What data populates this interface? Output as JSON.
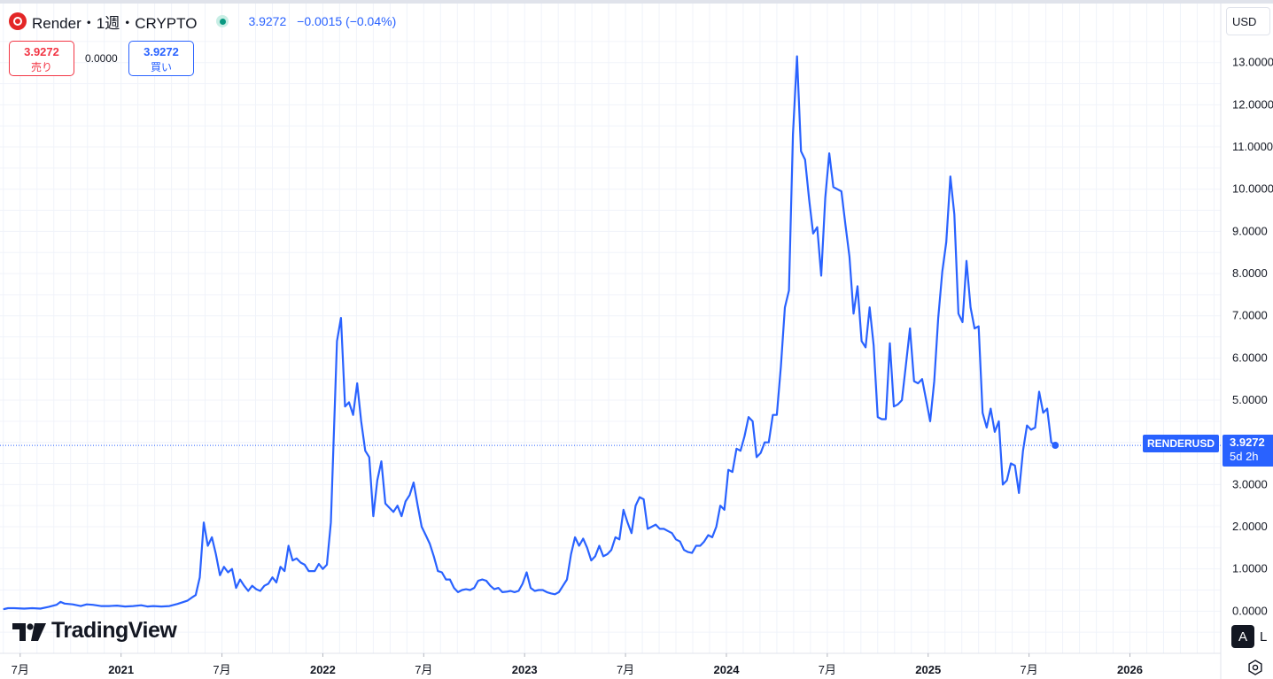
{
  "header": {
    "symbol_title": "Render・1週・CRYPTO",
    "last_price": "3.9272",
    "change": "−0.0015",
    "change_pct": "(−0.04%)"
  },
  "trade": {
    "sell_price": "3.9272",
    "sell_label": "売り",
    "spread": "0.0000",
    "buy_price": "3.9272",
    "buy_label": "買い"
  },
  "currency": "USD",
  "price_tag": {
    "symbol": "RENDERUSD",
    "value": "3.9272",
    "countdown": "5d 2h"
  },
  "logo_text": "TradingView",
  "controls": {
    "auto": "A",
    "log": "L"
  },
  "colors": {
    "line": "#2962ff",
    "grid": "#f0f3fa",
    "axis_text": "#131722",
    "sell": "#f23645",
    "buy": "#2962ff",
    "live": "#089981"
  },
  "chart_data": {
    "type": "line",
    "title": "Render・1週・CRYPTO",
    "xlabel": "",
    "ylabel": "",
    "yunit": "USD",
    "ylim": [
      -1.0,
      14.4
    ],
    "xlim": [
      2020.4,
      2026.45
    ],
    "grid": true,
    "last_value": 3.9272,
    "yticks": [
      0,
      1,
      2,
      3,
      4,
      5,
      6,
      7,
      8,
      9,
      10,
      11,
      12,
      13
    ],
    "ytick_labels": [
      "0.0000",
      "1.0000",
      "2.0000",
      "3.0000",
      "4.0000",
      "5.0000",
      "6.0000",
      "7.0000",
      "8.0000",
      "9.0000",
      "10.0000",
      "11.0000",
      "12.0000",
      "13.0000"
    ],
    "xticks": [
      {
        "x": 2020.5,
        "label": "7月",
        "bold": false
      },
      {
        "x": 2021.0,
        "label": "2021",
        "bold": true
      },
      {
        "x": 2021.5,
        "label": "7月",
        "bold": false
      },
      {
        "x": 2022.0,
        "label": "2022",
        "bold": true
      },
      {
        "x": 2022.5,
        "label": "7月",
        "bold": false
      },
      {
        "x": 2023.0,
        "label": "2023",
        "bold": true
      },
      {
        "x": 2023.5,
        "label": "7月",
        "bold": false
      },
      {
        "x": 2024.0,
        "label": "2024",
        "bold": true
      },
      {
        "x": 2024.5,
        "label": "7月",
        "bold": false
      },
      {
        "x": 2025.0,
        "label": "2025",
        "bold": true
      },
      {
        "x": 2025.5,
        "label": "7月",
        "bold": false
      },
      {
        "x": 2026.0,
        "label": "2026",
        "bold": true
      }
    ],
    "series": [
      {
        "values": [
          [
            2020.42,
            0.05
          ],
          [
            2020.44,
            0.07
          ],
          [
            2020.47,
            0.07
          ],
          [
            2020.52,
            0.06
          ],
          [
            2020.56,
            0.07
          ],
          [
            2020.6,
            0.06
          ],
          [
            2020.64,
            0.1
          ],
          [
            2020.68,
            0.15
          ],
          [
            2020.7,
            0.22
          ],
          [
            2020.72,
            0.18
          ],
          [
            2020.76,
            0.16
          ],
          [
            2020.8,
            0.12
          ],
          [
            2020.83,
            0.16
          ],
          [
            2020.86,
            0.15
          ],
          [
            2020.9,
            0.12
          ],
          [
            2020.94,
            0.12
          ],
          [
            2020.98,
            0.13
          ],
          [
            2021.02,
            0.11
          ],
          [
            2021.06,
            0.12
          ],
          [
            2021.1,
            0.14
          ],
          [
            2021.13,
            0.11
          ],
          [
            2021.16,
            0.12
          ],
          [
            2021.2,
            0.11
          ],
          [
            2021.24,
            0.12
          ],
          [
            2021.28,
            0.17
          ],
          [
            2021.31,
            0.22
          ],
          [
            2021.33,
            0.25
          ],
          [
            2021.35,
            0.32
          ],
          [
            2021.37,
            0.38
          ],
          [
            2021.39,
            0.8
          ],
          [
            2021.41,
            2.1
          ],
          [
            2021.43,
            1.55
          ],
          [
            2021.45,
            1.75
          ],
          [
            2021.47,
            1.35
          ],
          [
            2021.49,
            0.85
          ],
          [
            2021.51,
            1.05
          ],
          [
            2021.53,
            0.92
          ],
          [
            2021.55,
            1.0
          ],
          [
            2021.57,
            0.55
          ],
          [
            2021.59,
            0.75
          ],
          [
            2021.61,
            0.6
          ],
          [
            2021.63,
            0.48
          ],
          [
            2021.65,
            0.6
          ],
          [
            2021.67,
            0.52
          ],
          [
            2021.69,
            0.48
          ],
          [
            2021.71,
            0.6
          ],
          [
            2021.73,
            0.65
          ],
          [
            2021.75,
            0.8
          ],
          [
            2021.77,
            0.68
          ],
          [
            2021.79,
            1.05
          ],
          [
            2021.81,
            0.95
          ],
          [
            2021.83,
            1.55
          ],
          [
            2021.85,
            1.2
          ],
          [
            2021.87,
            1.25
          ],
          [
            2021.89,
            1.15
          ],
          [
            2021.91,
            1.1
          ],
          [
            2021.93,
            0.95
          ],
          [
            2021.96,
            0.95
          ],
          [
            2021.98,
            1.12
          ],
          [
            2022.0,
            1.0
          ],
          [
            2022.02,
            1.1
          ],
          [
            2022.04,
            2.1
          ],
          [
            2022.07,
            6.4
          ],
          [
            2022.09,
            6.95
          ],
          [
            2022.11,
            4.85
          ],
          [
            2022.13,
            4.95
          ],
          [
            2022.15,
            4.65
          ],
          [
            2022.17,
            5.4
          ],
          [
            2022.19,
            4.5
          ],
          [
            2022.21,
            3.8
          ],
          [
            2022.23,
            3.65
          ],
          [
            2022.25,
            2.25
          ],
          [
            2022.27,
            3.1
          ],
          [
            2022.29,
            3.55
          ],
          [
            2022.31,
            2.55
          ],
          [
            2022.33,
            2.45
          ],
          [
            2022.35,
            2.35
          ],
          [
            2022.37,
            2.5
          ],
          [
            2022.39,
            2.25
          ],
          [
            2022.41,
            2.6
          ],
          [
            2022.43,
            2.75
          ],
          [
            2022.45,
            3.05
          ],
          [
            2022.47,
            2.5
          ],
          [
            2022.49,
            2.0
          ],
          [
            2022.51,
            1.8
          ],
          [
            2022.53,
            1.6
          ],
          [
            2022.55,
            1.3
          ],
          [
            2022.57,
            0.95
          ],
          [
            2022.59,
            0.92
          ],
          [
            2022.61,
            0.75
          ],
          [
            2022.63,
            0.75
          ],
          [
            2022.65,
            0.55
          ],
          [
            2022.67,
            0.45
          ],
          [
            2022.69,
            0.5
          ],
          [
            2022.71,
            0.52
          ],
          [
            2022.73,
            0.5
          ],
          [
            2022.75,
            0.55
          ],
          [
            2022.77,
            0.72
          ],
          [
            2022.79,
            0.75
          ],
          [
            2022.81,
            0.72
          ],
          [
            2022.83,
            0.6
          ],
          [
            2022.85,
            0.52
          ],
          [
            2022.87,
            0.55
          ],
          [
            2022.89,
            0.45
          ],
          [
            2022.91,
            0.46
          ],
          [
            2022.93,
            0.48
          ],
          [
            2022.95,
            0.45
          ],
          [
            2022.97,
            0.48
          ],
          [
            2022.99,
            0.65
          ],
          [
            2023.01,
            0.92
          ],
          [
            2023.03,
            0.55
          ],
          [
            2023.05,
            0.48
          ],
          [
            2023.07,
            0.5
          ],
          [
            2023.09,
            0.5
          ],
          [
            2023.11,
            0.45
          ],
          [
            2023.13,
            0.42
          ],
          [
            2023.15,
            0.4
          ],
          [
            2023.17,
            0.45
          ],
          [
            2023.19,
            0.6
          ],
          [
            2023.21,
            0.75
          ],
          [
            2023.23,
            1.35
          ],
          [
            2023.25,
            1.75
          ],
          [
            2023.27,
            1.55
          ],
          [
            2023.29,
            1.72
          ],
          [
            2023.31,
            1.5
          ],
          [
            2023.33,
            1.2
          ],
          [
            2023.35,
            1.3
          ],
          [
            2023.37,
            1.55
          ],
          [
            2023.39,
            1.3
          ],
          [
            2023.41,
            1.35
          ],
          [
            2023.43,
            1.45
          ],
          [
            2023.45,
            1.75
          ],
          [
            2023.47,
            1.7
          ],
          [
            2023.49,
            2.4
          ],
          [
            2023.51,
            2.1
          ],
          [
            2023.53,
            1.85
          ],
          [
            2023.55,
            2.5
          ],
          [
            2023.57,
            2.7
          ],
          [
            2023.59,
            2.65
          ],
          [
            2023.61,
            1.95
          ],
          [
            2023.63,
            2.0
          ],
          [
            2023.65,
            2.05
          ],
          [
            2023.67,
            1.95
          ],
          [
            2023.69,
            1.95
          ],
          [
            2023.71,
            1.9
          ],
          [
            2023.73,
            1.85
          ],
          [
            2023.75,
            1.7
          ],
          [
            2023.77,
            1.65
          ],
          [
            2023.79,
            1.45
          ],
          [
            2023.81,
            1.4
          ],
          [
            2023.83,
            1.38
          ],
          [
            2023.85,
            1.55
          ],
          [
            2023.87,
            1.55
          ],
          [
            2023.89,
            1.65
          ],
          [
            2023.91,
            1.8
          ],
          [
            2023.93,
            1.75
          ],
          [
            2023.95,
            2.0
          ],
          [
            2023.97,
            2.5
          ],
          [
            2023.99,
            2.4
          ],
          [
            2024.01,
            3.35
          ],
          [
            2024.03,
            3.3
          ],
          [
            2024.05,
            3.85
          ],
          [
            2024.07,
            3.8
          ],
          [
            2024.09,
            4.15
          ],
          [
            2024.11,
            4.6
          ],
          [
            2024.13,
            4.5
          ],
          [
            2024.15,
            3.65
          ],
          [
            2024.17,
            3.75
          ],
          [
            2024.19,
            4.0
          ],
          [
            2024.21,
            4.0
          ],
          [
            2024.23,
            4.65
          ],
          [
            2024.25,
            4.65
          ],
          [
            2024.27,
            5.8
          ],
          [
            2024.29,
            7.2
          ],
          [
            2024.31,
            7.6
          ],
          [
            2024.33,
            11.3
          ],
          [
            2024.35,
            13.15
          ],
          [
            2024.37,
            10.9
          ],
          [
            2024.39,
            10.7
          ],
          [
            2024.41,
            9.75
          ],
          [
            2024.43,
            8.95
          ],
          [
            2024.45,
            9.1
          ],
          [
            2024.47,
            7.95
          ],
          [
            2024.49,
            9.8
          ],
          [
            2024.51,
            10.85
          ],
          [
            2024.53,
            10.05
          ],
          [
            2024.55,
            10.0
          ],
          [
            2024.57,
            9.95
          ],
          [
            2024.59,
            9.15
          ],
          [
            2024.61,
            8.4
          ],
          [
            2024.63,
            7.05
          ],
          [
            2024.65,
            7.7
          ],
          [
            2024.67,
            6.4
          ],
          [
            2024.69,
            6.25
          ],
          [
            2024.71,
            7.2
          ],
          [
            2024.73,
            6.3
          ],
          [
            2024.75,
            4.6
          ],
          [
            2024.77,
            4.55
          ],
          [
            2024.79,
            4.55
          ],
          [
            2024.81,
            6.35
          ],
          [
            2024.83,
            4.85
          ],
          [
            2024.85,
            4.9
          ],
          [
            2024.87,
            5.0
          ],
          [
            2024.89,
            5.85
          ],
          [
            2024.91,
            6.7
          ],
          [
            2024.93,
            5.45
          ],
          [
            2024.95,
            5.4
          ],
          [
            2024.97,
            5.5
          ],
          [
            2024.99,
            5.0
          ],
          [
            2025.01,
            4.5
          ],
          [
            2025.03,
            5.45
          ],
          [
            2025.05,
            6.95
          ],
          [
            2025.07,
            8.05
          ],
          [
            2025.09,
            8.75
          ],
          [
            2025.11,
            10.3
          ],
          [
            2025.13,
            9.4
          ],
          [
            2025.15,
            7.05
          ],
          [
            2025.17,
            6.85
          ],
          [
            2025.19,
            8.3
          ],
          [
            2025.21,
            7.2
          ],
          [
            2025.23,
            6.7
          ],
          [
            2025.25,
            6.75
          ],
          [
            2025.27,
            4.7
          ],
          [
            2025.29,
            4.35
          ],
          [
            2025.31,
            4.8
          ],
          [
            2025.33,
            4.25
          ],
          [
            2025.35,
            4.5
          ],
          [
            2025.37,
            3.0
          ],
          [
            2025.39,
            3.1
          ],
          [
            2025.41,
            3.5
          ],
          [
            2025.43,
            3.45
          ],
          [
            2025.45,
            2.8
          ],
          [
            2025.47,
            3.8
          ],
          [
            2025.49,
            4.4
          ],
          [
            2025.51,
            4.3
          ],
          [
            2025.53,
            4.35
          ],
          [
            2025.55,
            5.2
          ],
          [
            2025.57,
            4.7
          ],
          [
            2025.59,
            4.8
          ],
          [
            2025.61,
            4.0
          ],
          [
            2025.63,
            3.93
          ]
        ]
      }
    ]
  }
}
